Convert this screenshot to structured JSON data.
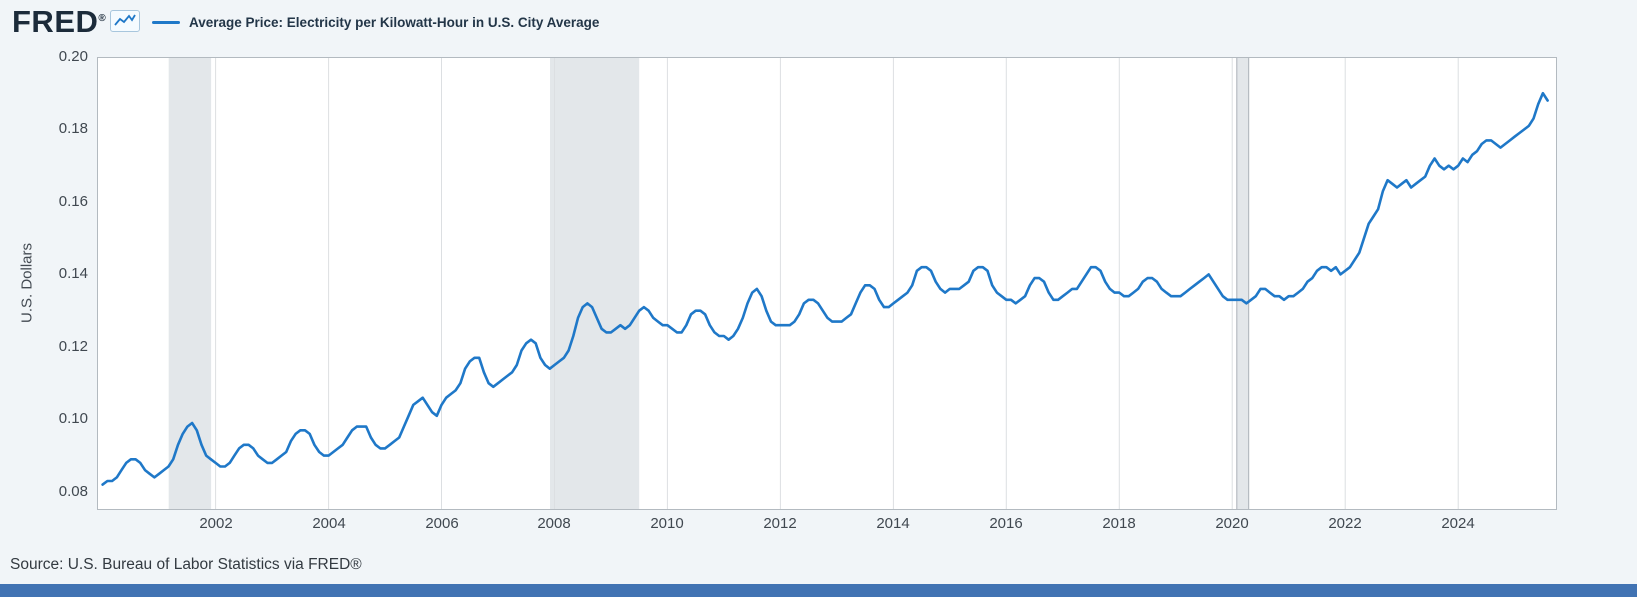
{
  "header": {
    "logo_text": "FRED",
    "logo_registered": "®"
  },
  "footer": {
    "source": "Source: U.S. Bureau of Labor Statistics via FRED®"
  },
  "chart_data": {
    "type": "line",
    "title": "Average Price: Electricity per Kilowatt-Hour in U.S. City Average",
    "ylabel": "U.S. Dollars",
    "frequency": "monthly",
    "start": "2000-01",
    "end": "2025-08",
    "xlim": [
      1999.9,
      2025.75
    ],
    "ylim": [
      0.075,
      0.2
    ],
    "yticks": [
      0.08,
      0.1,
      0.12,
      0.14,
      0.16,
      0.18,
      0.2
    ],
    "xticks": [
      2002,
      2004,
      2006,
      2008,
      2010,
      2012,
      2014,
      2016,
      2018,
      2020,
      2022,
      2024
    ],
    "recessions": [
      {
        "start": 2001.17,
        "end": 2001.92
      },
      {
        "start": 2007.92,
        "end": 2009.5
      },
      {
        "start": 2020.08,
        "end": 2020.29
      }
    ],
    "colors": {
      "line": "#1f78c8",
      "recession": "#e3e7ea",
      "recession_edge": "#aab1b8",
      "grid": "#dcdfe2",
      "axis": "#b3bac0",
      "plot_bg": "#ffffff"
    },
    "values": [
      0.082,
      0.083,
      0.083,
      0.084,
      0.086,
      0.088,
      0.089,
      0.089,
      0.088,
      0.086,
      0.085,
      0.084,
      0.085,
      0.086,
      0.087,
      0.089,
      0.093,
      0.096,
      0.098,
      0.099,
      0.097,
      0.093,
      0.09,
      0.089,
      0.088,
      0.087,
      0.087,
      0.088,
      0.09,
      0.092,
      0.093,
      0.093,
      0.092,
      0.09,
      0.089,
      0.088,
      0.088,
      0.089,
      0.09,
      0.091,
      0.094,
      0.096,
      0.097,
      0.097,
      0.096,
      0.093,
      0.091,
      0.09,
      0.09,
      0.091,
      0.092,
      0.093,
      0.095,
      0.097,
      0.098,
      0.098,
      0.098,
      0.095,
      0.093,
      0.092,
      0.092,
      0.093,
      0.094,
      0.095,
      0.098,
      0.101,
      0.104,
      0.105,
      0.106,
      0.104,
      0.102,
      0.101,
      0.104,
      0.106,
      0.107,
      0.108,
      0.11,
      0.114,
      0.116,
      0.117,
      0.117,
      0.113,
      0.11,
      0.109,
      0.11,
      0.111,
      0.112,
      0.113,
      0.115,
      0.119,
      0.121,
      0.122,
      0.121,
      0.117,
      0.115,
      0.114,
      0.115,
      0.116,
      0.117,
      0.119,
      0.123,
      0.128,
      0.131,
      0.132,
      0.131,
      0.128,
      0.125,
      0.124,
      0.124,
      0.125,
      0.126,
      0.125,
      0.126,
      0.128,
      0.13,
      0.131,
      0.13,
      0.128,
      0.127,
      0.126,
      0.126,
      0.125,
      0.124,
      0.124,
      0.126,
      0.129,
      0.13,
      0.13,
      0.129,
      0.126,
      0.124,
      0.123,
      0.123,
      0.122,
      0.123,
      0.125,
      0.128,
      0.132,
      0.135,
      0.136,
      0.134,
      0.13,
      0.127,
      0.126,
      0.126,
      0.126,
      0.126,
      0.127,
      0.129,
      0.132,
      0.133,
      0.133,
      0.132,
      0.13,
      0.128,
      0.127,
      0.127,
      0.127,
      0.128,
      0.129,
      0.132,
      0.135,
      0.137,
      0.137,
      0.136,
      0.133,
      0.131,
      0.131,
      0.132,
      0.133,
      0.134,
      0.135,
      0.137,
      0.141,
      0.142,
      0.142,
      0.141,
      0.138,
      0.136,
      0.135,
      0.136,
      0.136,
      0.136,
      0.137,
      0.138,
      0.141,
      0.142,
      0.142,
      0.141,
      0.137,
      0.135,
      0.134,
      0.133,
      0.133,
      0.132,
      0.133,
      0.134,
      0.137,
      0.139,
      0.139,
      0.138,
      0.135,
      0.133,
      0.133,
      0.134,
      0.135,
      0.136,
      0.136,
      0.138,
      0.14,
      0.142,
      0.142,
      0.141,
      0.138,
      0.136,
      0.135,
      0.135,
      0.134,
      0.134,
      0.135,
      0.136,
      0.138,
      0.139,
      0.139,
      0.138,
      0.136,
      0.135,
      0.134,
      0.134,
      0.134,
      0.135,
      0.136,
      0.137,
      0.138,
      0.139,
      0.14,
      0.138,
      0.136,
      0.134,
      0.133,
      0.133,
      0.133,
      0.133,
      0.132,
      0.133,
      0.134,
      0.136,
      0.136,
      0.135,
      0.134,
      0.134,
      0.133,
      0.134,
      0.134,
      0.135,
      0.136,
      0.138,
      0.139,
      0.141,
      0.142,
      0.142,
      0.141,
      0.142,
      0.14,
      0.141,
      0.142,
      0.144,
      0.146,
      0.15,
      0.154,
      0.156,
      0.158,
      0.163,
      0.166,
      0.165,
      0.164,
      0.165,
      0.166,
      0.164,
      0.165,
      0.166,
      0.167,
      0.17,
      0.172,
      0.17,
      0.169,
      0.17,
      0.169,
      0.17,
      0.172,
      0.171,
      0.173,
      0.174,
      0.176,
      0.177,
      0.177,
      0.176,
      0.175,
      0.176,
      0.177,
      0.178,
      0.179,
      0.18,
      0.181,
      0.183,
      0.187,
      0.19,
      0.188
    ]
  }
}
